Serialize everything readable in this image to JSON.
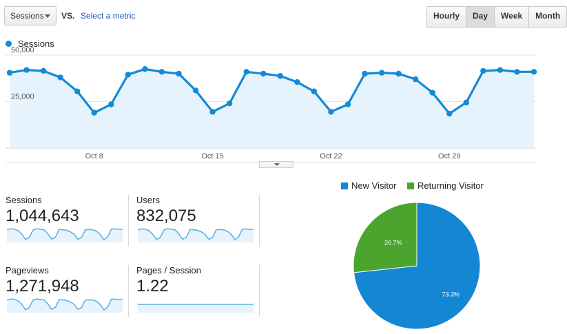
{
  "controls": {
    "metric_select_value": "Sessions",
    "vs_label": "VS.",
    "select_metric_link": "Select a metric",
    "granularity": [
      {
        "label": "Hourly",
        "active": false
      },
      {
        "label": "Day",
        "active": true
      },
      {
        "label": "Week",
        "active": false
      },
      {
        "label": "Month",
        "active": false
      }
    ]
  },
  "legend": {
    "series_label": "Sessions"
  },
  "colors": {
    "line": "#1589d6",
    "area": "#e6f3fc",
    "new_visitor": "#1487d4",
    "returning_visitor": "#4ba42e"
  },
  "chart_data": [
    {
      "type": "area",
      "x": [
        "Oct 3",
        "Oct 4",
        "Oct 5",
        "Oct 6",
        "Oct 7",
        "Oct 8",
        "Oct 9",
        "Oct 10",
        "Oct 11",
        "Oct 12",
        "Oct 13",
        "Oct 14",
        "Oct 15",
        "Oct 16",
        "Oct 17",
        "Oct 18",
        "Oct 19",
        "Oct 20",
        "Oct 21",
        "Oct 22",
        "Oct 23",
        "Oct 24",
        "Oct 25",
        "Oct 26",
        "Oct 27",
        "Oct 28",
        "Oct 29",
        "Oct 30",
        "Oct 31",
        "Nov 1",
        "Nov 2",
        "Nov 3"
      ],
      "series": [
        {
          "name": "Sessions",
          "values": [
            40500,
            42000,
            41500,
            38000,
            30500,
            19000,
            23500,
            39500,
            42500,
            41000,
            40000,
            31000,
            19500,
            24000,
            41000,
            40000,
            38800,
            35500,
            30500,
            19500,
            23500,
            40000,
            40500,
            40000,
            37000,
            29800,
            18500,
            24500,
            41500,
            42000,
            41000,
            41000
          ]
        }
      ],
      "x_tick_labels": [
        "Oct 8",
        "Oct 15",
        "Oct 22",
        "Oct 29"
      ],
      "y_tick_labels": [
        "25,000",
        "50,000"
      ],
      "ylim": [
        0,
        50000
      ],
      "grid": true
    },
    {
      "type": "pie",
      "categories": [
        "New Visitor",
        "Returning Visitor"
      ],
      "values": [
        73.3,
        26.7
      ],
      "slice_labels": [
        "73.3%",
        "26.7%"
      ],
      "legend_position": "top"
    }
  ],
  "scorecards": [
    {
      "label": "Sessions",
      "value": "1,044,643",
      "spark": [
        40500,
        42000,
        41500,
        38000,
        30500,
        19000,
        23500,
        39500,
        42500,
        41000,
        40000,
        31000,
        19500,
        24000,
        41000,
        40000,
        38800,
        35500,
        30500,
        19500,
        23500,
        40000,
        40500,
        40000,
        37000,
        29800,
        18500,
        24500,
        41500,
        42000,
        41000,
        41000
      ]
    },
    {
      "label": "Users",
      "value": "832,075",
      "spark": [
        32000,
        33500,
        33000,
        30500,
        24500,
        15000,
        18500,
        31500,
        34000,
        32800,
        32000,
        25000,
        15500,
        19000,
        32800,
        32000,
        31000,
        28500,
        24500,
        15500,
        18500,
        32000,
        32500,
        32000,
        29500,
        24000,
        14800,
        19500,
        33000,
        33500,
        32800,
        32800
      ]
    },
    {
      "label": "Pageviews",
      "value": "1,271,948",
      "spark": [
        49500,
        51500,
        51000,
        46500,
        37500,
        23000,
        29000,
        48500,
        52000,
        50000,
        49000,
        38000,
        24000,
        29500,
        50000,
        49000,
        47500,
        43500,
        37500,
        24000,
        29000,
        49000,
        49500,
        49000,
        45500,
        36500,
        22500,
        30000,
        51000,
        51500,
        50000,
        50000
      ]
    },
    {
      "label": "Pages / Session",
      "value": "1.22",
      "spark": [
        1.22,
        1.22,
        1.22,
        1.22,
        1.23,
        1.21,
        1.22,
        1.22,
        1.22,
        1.22,
        1.22,
        1.22,
        1.23,
        1.22,
        1.22,
        1.22,
        1.22,
        1.22,
        1.22,
        1.22,
        1.22,
        1.22,
        1.22,
        1.22,
        1.22,
        1.22,
        1.21,
        1.22,
        1.22,
        1.22,
        1.22,
        1.22
      ]
    }
  ]
}
